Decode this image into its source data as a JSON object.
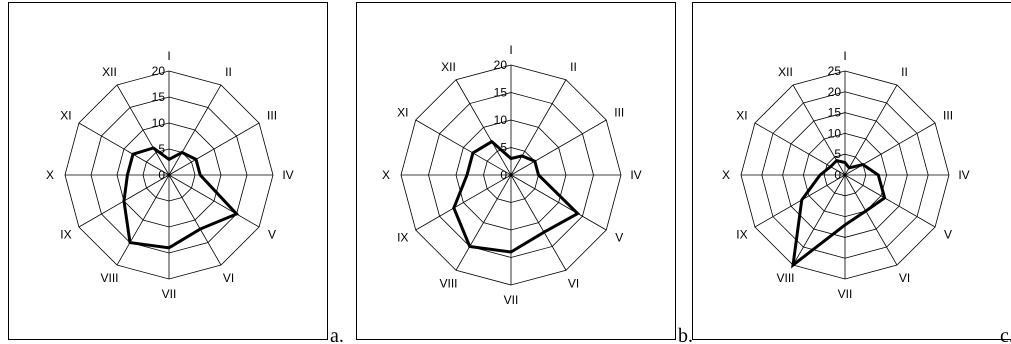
{
  "panel_letters": [
    "a.",
    "b.",
    "c."
  ],
  "chart_data": [
    {
      "type": "radar",
      "categories": [
        "I",
        "II",
        "III",
        "IV",
        "V",
        "VI",
        "VII",
        "VIII",
        "IX",
        "X",
        "XI",
        "XII"
      ],
      "rlim": [
        0,
        20
      ],
      "ticks": [
        "0",
        "5",
        "10",
        "15",
        "20"
      ],
      "tick_values": [
        0,
        5,
        10,
        15,
        20
      ],
      "values": [
        3,
        5,
        6,
        6,
        15,
        12,
        14,
        15,
        10,
        8,
        8,
        6
      ],
      "grid": true
    },
    {
      "type": "radar",
      "categories": [
        "I",
        "II",
        "III",
        "IV",
        "V",
        "VI",
        "VII",
        "VIII",
        "IX",
        "X",
        "XI",
        "XII"
      ],
      "rlim": [
        0,
        20
      ],
      "ticks": [
        "0",
        "5",
        "10",
        "15",
        "20"
      ],
      "tick_values": [
        0,
        5,
        10,
        15,
        20
      ],
      "values": [
        3,
        4,
        5,
        5,
        14,
        12,
        14,
        15,
        12,
        8,
        8,
        7
      ],
      "grid": true
    },
    {
      "type": "radar",
      "categories": [
        "I",
        "II",
        "III",
        "IV",
        "V",
        "VI",
        "VII",
        "VIII",
        "IX",
        "X",
        "XI",
        "XII"
      ],
      "rlim": [
        0,
        25
      ],
      "ticks": [
        "0",
        "5",
        "10",
        "15",
        "20",
        "25"
      ],
      "tick_values": [
        0,
        5,
        10,
        15,
        20,
        25
      ],
      "values": [
        3,
        2,
        5,
        8,
        11,
        10,
        12,
        25,
        12,
        6,
        4,
        4
      ],
      "grid": true
    }
  ]
}
